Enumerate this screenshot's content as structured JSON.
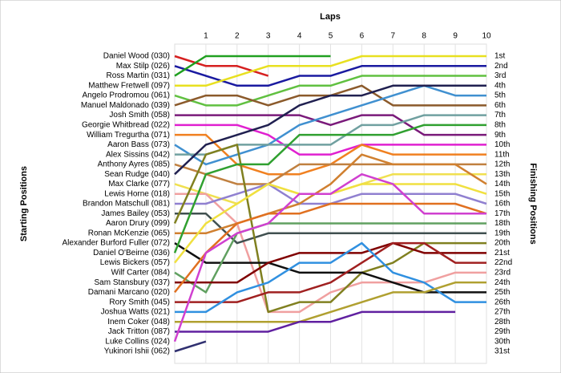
{
  "chart_data": {
    "type": "line",
    "x_label": "Laps",
    "y_label": "Starting Positions",
    "y2_label": "Finishing Positions",
    "x": [
      0,
      1,
      2,
      3,
      4,
      5,
      6,
      7,
      8,
      9,
      10
    ],
    "xlim": [
      0,
      10
    ],
    "xticks": [
      1,
      2,
      3,
      4,
      5,
      6,
      7,
      8,
      9,
      10
    ],
    "ylim": [
      1,
      31
    ],
    "grid": true,
    "finishing_labels": [
      "1st",
      "2nd",
      "3rd",
      "4th",
      "5th",
      "6th",
      "7th",
      "8th",
      "9th",
      "10th",
      "11th",
      "12th",
      "13th",
      "14th",
      "15th",
      "16th",
      "17th",
      "18th",
      "19th",
      "20th",
      "21st",
      "22nd",
      "23rd",
      "24th",
      "25th",
      "26th",
      "27th",
      "28th",
      "29th",
      "30th",
      "31st"
    ],
    "series": [
      {
        "name": "Daniel Wood (030)",
        "color": "#d62020",
        "values": [
          1,
          2,
          2,
          3,
          null,
          null,
          null,
          null,
          null,
          null,
          null
        ]
      },
      {
        "name": "Max Stilp (026)",
        "color": "#1a1aa0",
        "values": [
          2,
          3,
          4,
          4,
          3,
          3,
          2,
          2,
          2,
          2,
          2
        ]
      },
      {
        "name": "Ross Martin (031)",
        "color": "#20a020",
        "values": [
          3,
          1,
          1,
          1,
          1,
          1,
          null,
          null,
          null,
          null,
          null
        ]
      },
      {
        "name": "Matthew Fretwell (097)",
        "color": "#e8e020",
        "values": [
          4,
          4,
          3,
          2,
          2,
          2,
          1,
          1,
          1,
          1,
          1
        ]
      },
      {
        "name": "Angelo Prodromou (061)",
        "color": "#60c040",
        "values": [
          5,
          6,
          6,
          5,
          4,
          4,
          3,
          3,
          3,
          3,
          3
        ]
      },
      {
        "name": "Manuel Maldonado (039)",
        "color": "#8b5a2b",
        "values": [
          6,
          5,
          5,
          6,
          5,
          5,
          4,
          6,
          6,
          6,
          6
        ]
      },
      {
        "name": "Josh Smith (058)",
        "color": "#7a1a7a",
        "values": [
          7,
          7,
          7,
          7,
          7,
          8,
          7,
          7,
          9,
          9,
          9
        ]
      },
      {
        "name": "Georgie Whitbread (022)",
        "color": "#e020d0",
        "values": [
          8,
          8,
          8,
          9,
          11,
          11,
          10,
          10,
          10,
          10,
          10
        ]
      },
      {
        "name": "William Tregurtha (071)",
        "color": "#f08020",
        "values": [
          9,
          9,
          12,
          13,
          13,
          12,
          10,
          11,
          11,
          11,
          11
        ]
      },
      {
        "name": "Aaron Bass (073)",
        "color": "#4090d0",
        "values": [
          10,
          12,
          11,
          10,
          8,
          7,
          6,
          5,
          4,
          5,
          5
        ]
      },
      {
        "name": "Alex Sissins (042)",
        "color": "#70a0a0",
        "values": [
          11,
          11,
          10,
          10,
          10,
          10,
          8,
          8,
          7,
          7,
          7
        ]
      },
      {
        "name": "Anthony Ayres (085)",
        "color": "#c08040",
        "values": [
          12,
          13,
          14,
          14,
          12,
          12,
          12,
          12,
          12,
          12,
          12
        ]
      },
      {
        "name": "Sean Rudge (040)",
        "color": "#202050",
        "values": [
          13,
          10,
          9,
          8,
          6,
          5,
          5,
          4,
          4,
          4,
          4
        ]
      },
      {
        "name": "Max Clarke (077)",
        "color": "#f0e050",
        "values": [
          14,
          15,
          16,
          14,
          15,
          15,
          14,
          13,
          13,
          13,
          13
        ]
      },
      {
        "name": "Lewis Horne (018)",
        "color": "#f0a0a0",
        "values": [
          15,
          15,
          18,
          27,
          27,
          25,
          24,
          24,
          24,
          23,
          23
        ]
      },
      {
        "name": "Brandon Matschull (081)",
        "color": "#9080d0",
        "values": [
          16,
          16,
          15,
          14,
          16,
          16,
          15,
          15,
          15,
          15,
          16
        ]
      },
      {
        "name": "James Bailey (053)",
        "color": "#405050",
        "values": [
          17,
          17,
          20,
          19,
          19,
          19,
          19,
          19,
          19,
          19,
          19
        ]
      },
      {
        "name": "Aaron Drury (099)",
        "color": "#808020",
        "values": [
          18,
          11,
          10,
          27,
          26,
          26,
          23,
          22,
          20,
          20,
          20
        ]
      },
      {
        "name": "Ronan McKenzie (065)",
        "color": "#d08030",
        "values": [
          19,
          19,
          18,
          17,
          16,
          14,
          11,
          12,
          12,
          12,
          14
        ]
      },
      {
        "name": "Alexander Burford Fuller (072)",
        "color": "#101010",
        "values": [
          20,
          22,
          22,
          22,
          23,
          23,
          23,
          24,
          25,
          25,
          25
        ]
      },
      {
        "name": "Daniel O'Beirne (036)",
        "color": "#30a030",
        "values": [
          21,
          13,
          12,
          12,
          9,
          9,
          9,
          9,
          8,
          8,
          8
        ]
      },
      {
        "name": "Lewis Bickers (057)",
        "color": "#f0e040",
        "values": [
          22,
          18,
          16,
          14,
          15,
          15,
          14,
          14,
          14,
          14,
          15
        ]
      },
      {
        "name": "Wilf Carter (084)",
        "color": "#60a060",
        "values": [
          23,
          25,
          19,
          18,
          18,
          18,
          18,
          18,
          18,
          18,
          18
        ]
      },
      {
        "name": "Sam Stansbury (037)",
        "color": "#800000",
        "values": [
          24,
          24,
          24,
          22,
          21,
          21,
          21,
          20,
          21,
          21,
          21
        ]
      },
      {
        "name": "Damani Marcano (020)",
        "color": "#e07020",
        "values": [
          25,
          21,
          18,
          17,
          17,
          16,
          16,
          16,
          16,
          16,
          17
        ]
      },
      {
        "name": "Rory Smith (045)",
        "color": "#a02020",
        "values": [
          26,
          26,
          26,
          25,
          25,
          24,
          22,
          20,
          20,
          22,
          22
        ]
      },
      {
        "name": "Joshua Watts (021)",
        "color": "#3090e0",
        "values": [
          27,
          27,
          25,
          24,
          22,
          22,
          20,
          23,
          24,
          26,
          26
        ]
      },
      {
        "name": "Inem Coker (048)",
        "color": "#b0a030",
        "values": [
          28,
          28,
          28,
          28,
          28,
          27,
          26,
          25,
          25,
          24,
          24
        ]
      },
      {
        "name": "Jack Tritton (087)",
        "color": "#6020a0",
        "values": [
          29,
          29,
          29,
          29,
          28,
          28,
          27,
          27,
          27,
          27,
          null
        ]
      },
      {
        "name": "Luke Collins (024)",
        "color": "#d040d0",
        "values": [
          30,
          21,
          19,
          18,
          15,
          15,
          13,
          14,
          17,
          17,
          17
        ]
      },
      {
        "name": "Yukinori Ishii (062)",
        "color": "#303070",
        "values": [
          31,
          30,
          null,
          null,
          null,
          null,
          null,
          null,
          null,
          null,
          null
        ]
      }
    ]
  }
}
